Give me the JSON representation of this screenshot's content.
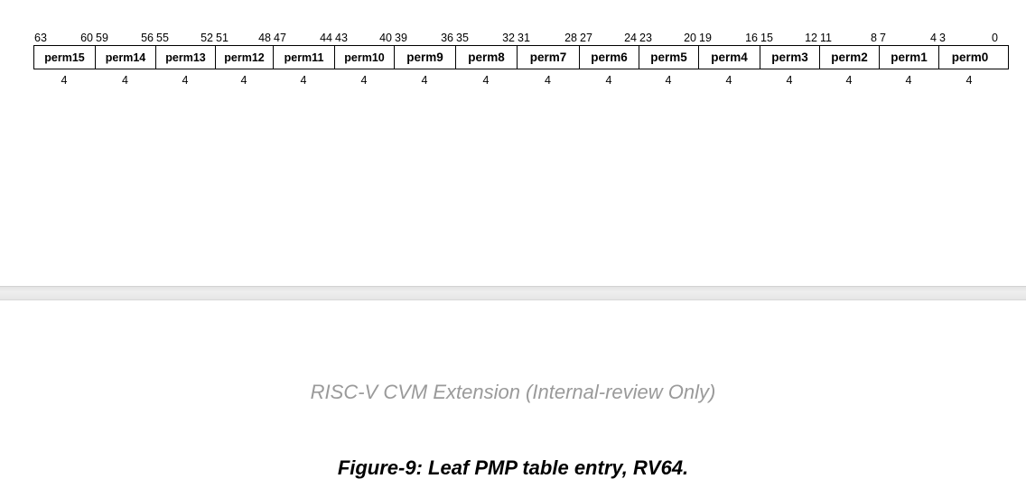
{
  "register": {
    "bit_labels": [
      [
        "63",
        "60"
      ],
      [
        "59",
        "56"
      ],
      [
        "55",
        "52"
      ],
      [
        "51",
        "48"
      ],
      [
        "47",
        "44"
      ],
      [
        "43",
        "40"
      ],
      [
        "39",
        "36"
      ],
      [
        "35",
        "32"
      ],
      [
        "31",
        "28"
      ],
      [
        "27",
        "24"
      ],
      [
        "23",
        "20"
      ],
      [
        "19",
        "16"
      ],
      [
        "15",
        "12"
      ],
      [
        "11",
        "8"
      ],
      [
        "7",
        "4"
      ],
      [
        "3",
        "0"
      ]
    ],
    "fields": [
      {
        "name": "perm15",
        "width": "4"
      },
      {
        "name": "perm14",
        "width": "4"
      },
      {
        "name": "perm13",
        "width": "4"
      },
      {
        "name": "perm12",
        "width": "4"
      },
      {
        "name": "perm11",
        "width": "4"
      },
      {
        "name": "perm10",
        "width": "4"
      },
      {
        "name": "perm9",
        "width": "4"
      },
      {
        "name": "perm8",
        "width": "4"
      },
      {
        "name": "perm7",
        "width": "4"
      },
      {
        "name": "perm6",
        "width": "4"
      },
      {
        "name": "perm5",
        "width": "4"
      },
      {
        "name": "perm4",
        "width": "4"
      },
      {
        "name": "perm3",
        "width": "4"
      },
      {
        "name": "perm2",
        "width": "4"
      },
      {
        "name": "perm1",
        "width": "4"
      },
      {
        "name": "perm0",
        "width": "4"
      }
    ]
  },
  "page_header": "RISC-V CVM Extension (Internal-review Only)",
  "figure_caption": "Figure-9: Leaf PMP table entry, RV64."
}
